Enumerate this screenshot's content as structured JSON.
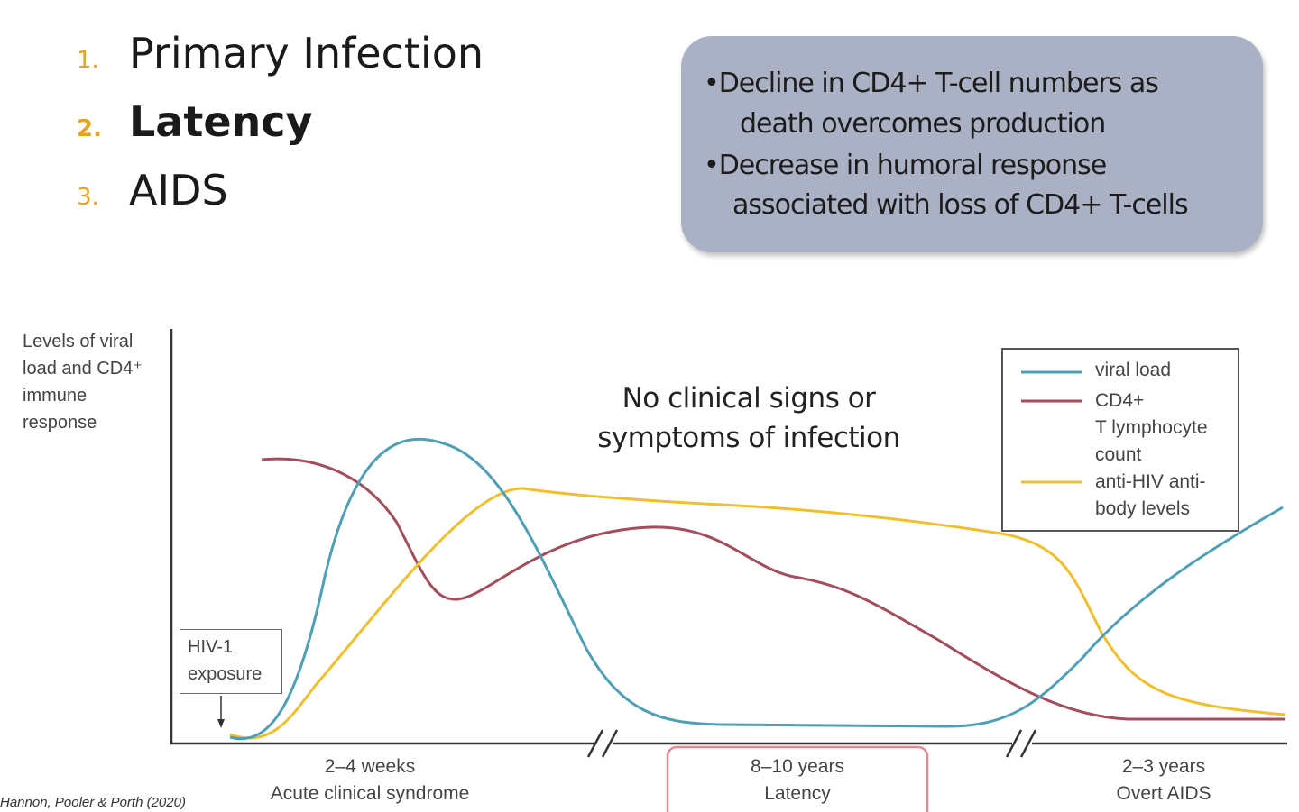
{
  "stages": [
    {
      "number": "1.",
      "label": "Primary Infection"
    },
    {
      "number": "2.",
      "label": "Latency"
    },
    {
      "number": "3.",
      "label": "AIDS"
    }
  ],
  "callout": {
    "bullet1_line1": "•Decline in CD4+ T-cell numbers as",
    "bullet1_line2": "death overcomes production",
    "bullet2_line1": "•Decrease in humoral response",
    "bullet2_line2": "associated with loss of CD4+ T-cells"
  },
  "diagram": {
    "y_axis_label": [
      "Levels of viral",
      "load and CD4⁺",
      "immune",
      "response"
    ],
    "annotation": [
      "No clinical signs or",
      "symptoms of infection"
    ],
    "exposure_label": [
      "HIV-1",
      "exposure"
    ],
    "legend": {
      "viral": "viral load",
      "cd4": [
        "CD4+",
        "T lymphocyte",
        "count"
      ],
      "antibody": [
        "anti-HIV anti-",
        "body levels"
      ]
    },
    "phases": [
      {
        "duration": "2–4 weeks",
        "name": "Acute clinical syndrome"
      },
      {
        "duration": "8–10 years",
        "name": "Latency"
      },
      {
        "duration": "2–3 years",
        "name": "Overt AIDS"
      }
    ],
    "colors": {
      "viral": "#4f9fb6",
      "cd4": "#a34e5c",
      "antibody": "#f0bf2e",
      "highlight": "#e08a93"
    }
  },
  "citation": "Hannon, Pooler & Porth (2020)"
}
